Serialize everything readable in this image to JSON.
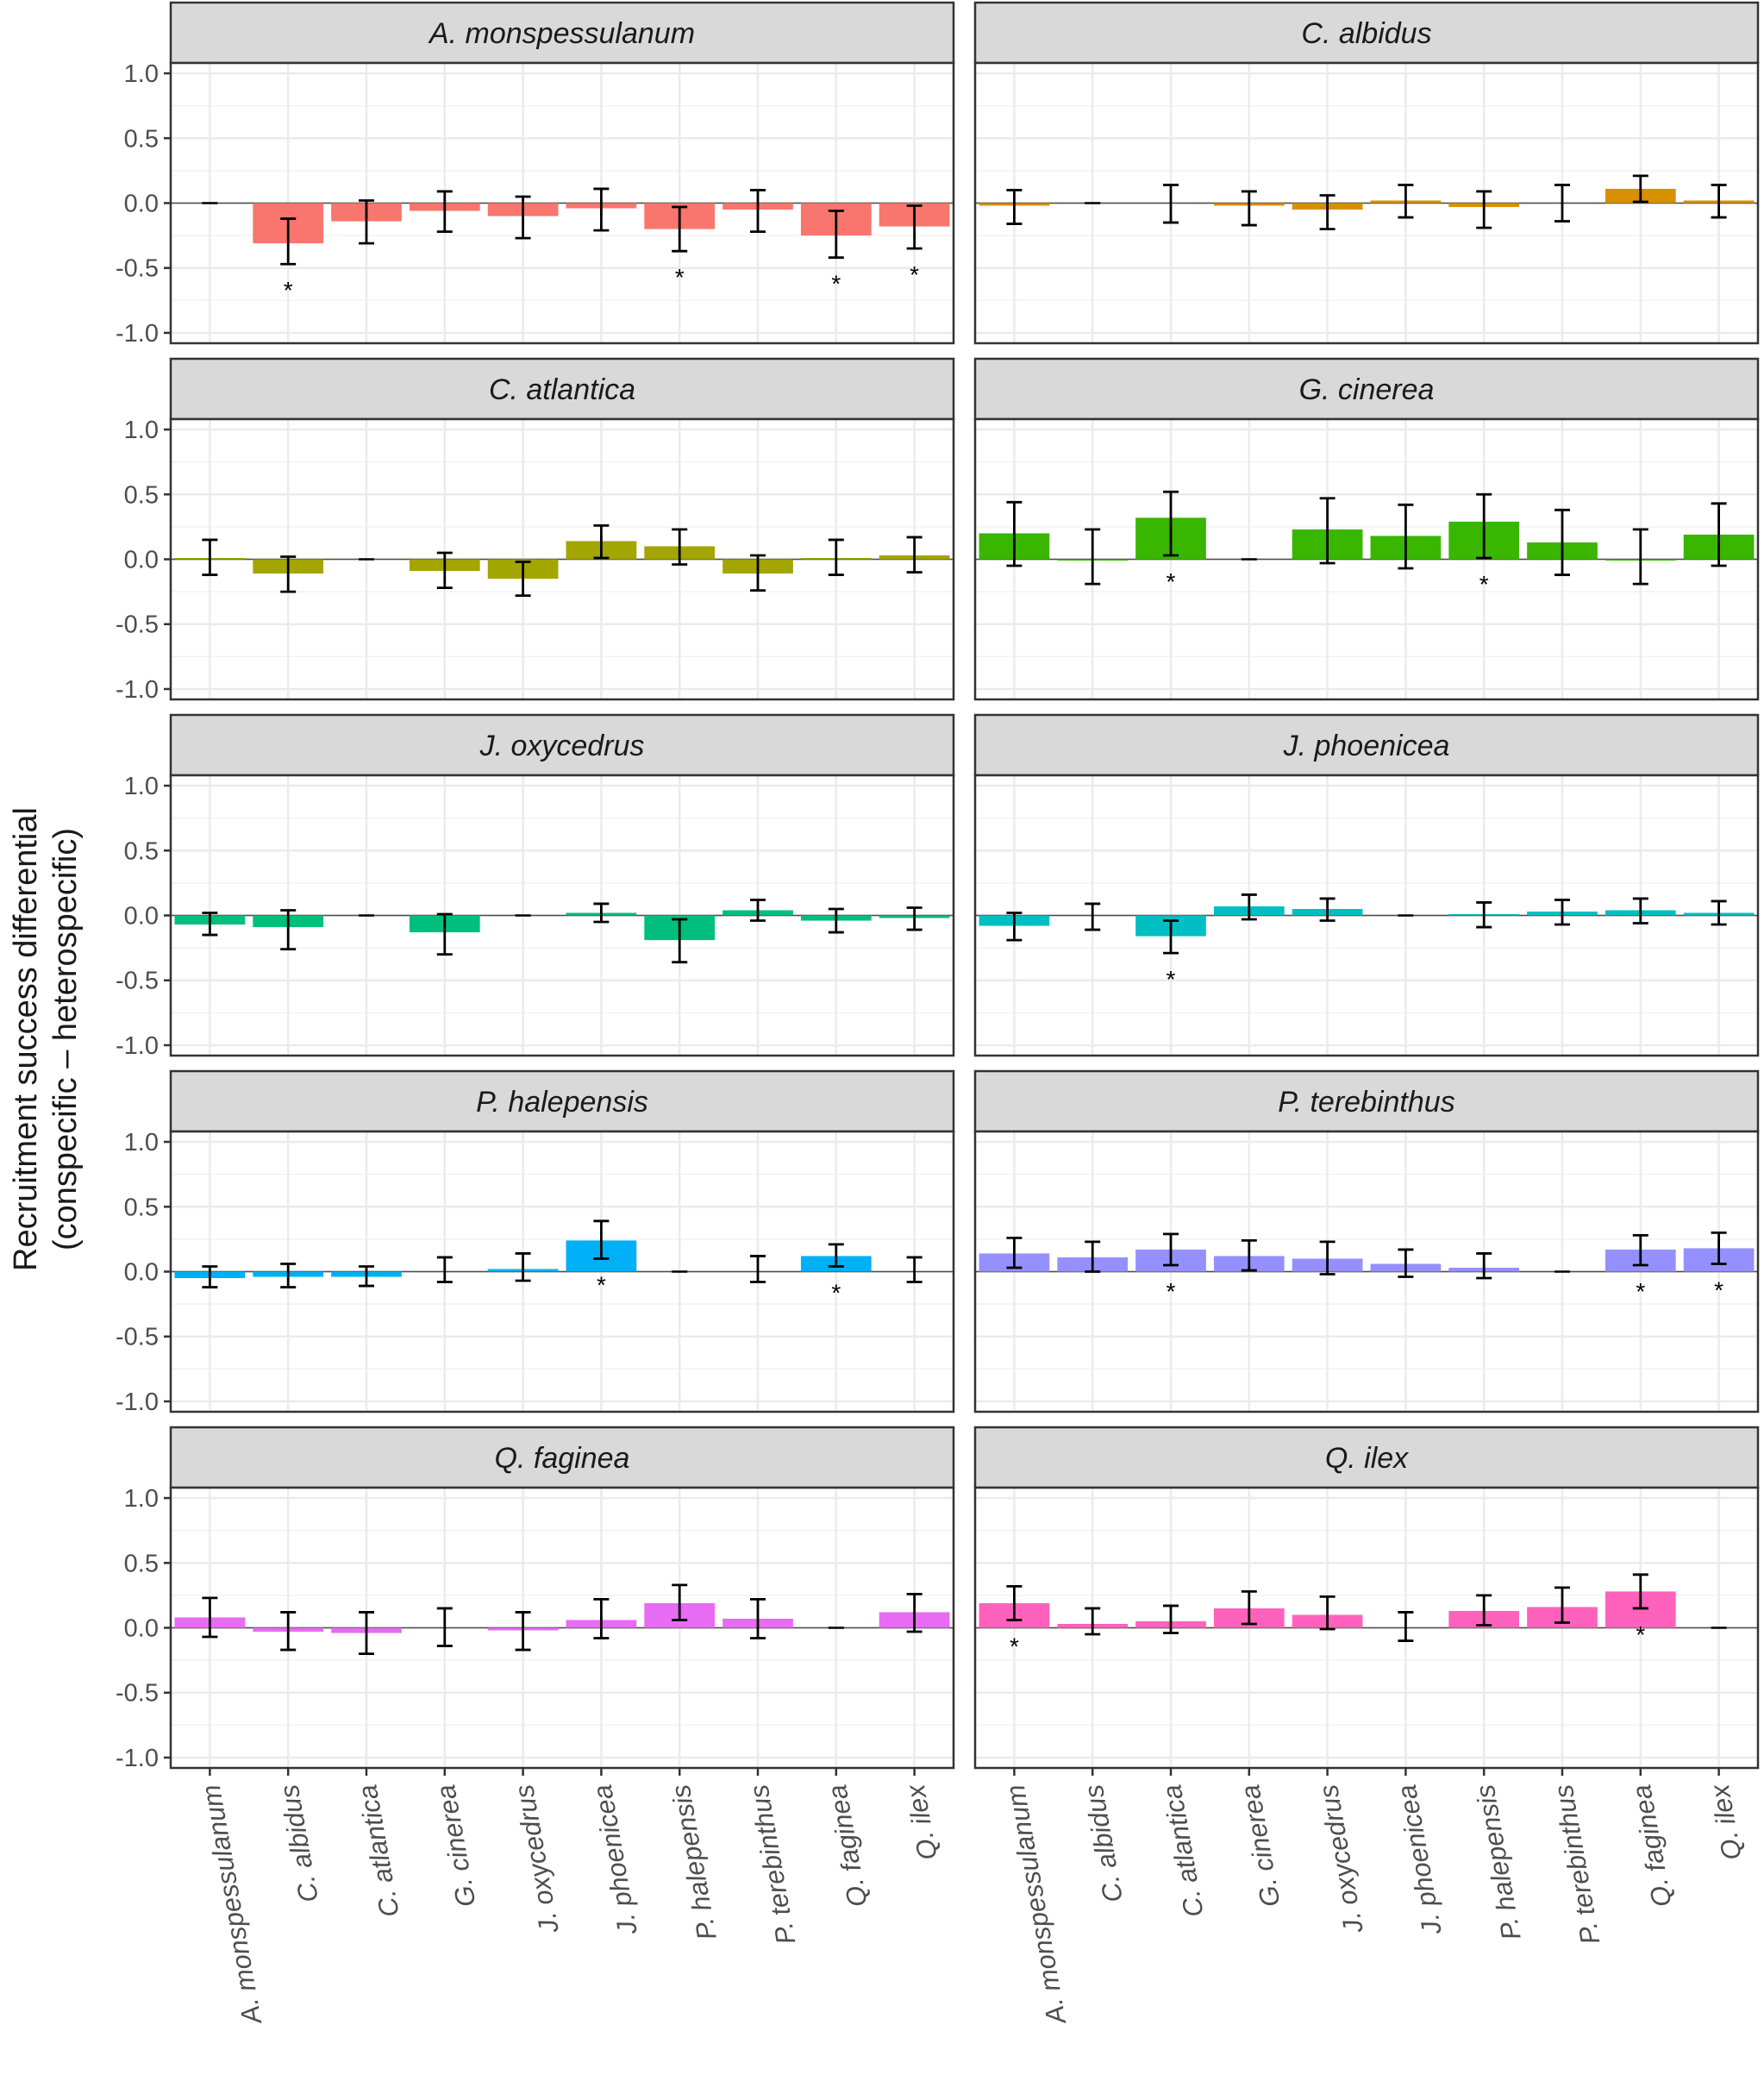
{
  "chart_data": {
    "type": "bar",
    "ylabel_line1": "Recruitment success differential",
    "ylabel_line2": "(conspecific – heterospecific)",
    "xlabel": "",
    "ylim": [
      -1.08,
      1.08
    ],
    "yticks": [
      1.0,
      0.5,
      0.0,
      -0.5,
      -1.0
    ],
    "ytick_labels": [
      "1.0",
      "0.5",
      "0.0",
      "-0.5",
      "-1.0"
    ],
    "grid": true,
    "legend": "none",
    "categories": [
      "A. monspessulanum",
      "C. albidus",
      "C. atlantica",
      "G. cinerea",
      "J. oxycedrus",
      "J. phoenicea",
      "P. halepensis",
      "P. terebinthus",
      "Q. faginea",
      "Q. ilex"
    ],
    "panels": [
      {
        "name": "A. monspessulanum",
        "color": "#F8766D",
        "values": [
          0.0,
          -0.31,
          -0.14,
          -0.06,
          -0.1,
          -0.04,
          -0.2,
          -0.05,
          -0.25,
          -0.18
        ],
        "lower": [
          0.0,
          -0.47,
          -0.31,
          -0.22,
          -0.27,
          -0.21,
          -0.37,
          -0.22,
          -0.42,
          -0.35
        ],
        "upper": [
          0.0,
          -0.12,
          0.02,
          0.09,
          0.05,
          0.11,
          -0.03,
          0.1,
          -0.06,
          -0.02
        ],
        "significant": [
          "C. albidus",
          "P. halepensis",
          "Q. faginea",
          "Q. ilex"
        ]
      },
      {
        "name": "C. albidus",
        "color": "#D89000",
        "values": [
          -0.02,
          0.0,
          0.0,
          -0.02,
          -0.05,
          0.02,
          -0.03,
          0.0,
          0.11,
          0.02
        ],
        "lower": [
          -0.16,
          0.0,
          -0.15,
          -0.17,
          -0.2,
          -0.11,
          -0.19,
          -0.14,
          0.01,
          -0.11
        ],
        "upper": [
          0.1,
          0.0,
          0.14,
          0.09,
          0.06,
          0.14,
          0.09,
          0.14,
          0.21,
          0.14
        ],
        "significant": []
      },
      {
        "name": "C. atlantica",
        "color": "#A3A500",
        "values": [
          0.01,
          -0.11,
          0.0,
          -0.09,
          -0.15,
          0.14,
          0.1,
          -0.11,
          0.01,
          0.03
        ],
        "lower": [
          -0.12,
          -0.25,
          0.0,
          -0.22,
          -0.28,
          0.01,
          -0.04,
          -0.24,
          -0.12,
          -0.1
        ],
        "upper": [
          0.15,
          0.02,
          0.0,
          0.05,
          -0.02,
          0.26,
          0.23,
          0.03,
          0.15,
          0.17
        ],
        "significant": []
      },
      {
        "name": "G. cinerea",
        "color": "#39B600",
        "values": [
          0.2,
          -0.01,
          0.32,
          0.0,
          0.23,
          0.18,
          0.29,
          0.13,
          -0.01,
          0.19
        ],
        "lower": [
          -0.05,
          -0.19,
          0.03,
          0.0,
          -0.03,
          -0.07,
          0.01,
          -0.12,
          -0.19,
          -0.05
        ],
        "upper": [
          0.44,
          0.23,
          0.52,
          0.0,
          0.47,
          0.42,
          0.5,
          0.38,
          0.23,
          0.43
        ],
        "significant": [
          "C. atlantica",
          "P. halepensis"
        ]
      },
      {
        "name": "J. oxycedrus",
        "color": "#00BF7D",
        "values": [
          -0.07,
          -0.09,
          0.0,
          -0.13,
          0.0,
          0.02,
          -0.19,
          0.04,
          -0.04,
          -0.02
        ],
        "lower": [
          -0.15,
          -0.26,
          0.0,
          -0.3,
          0.0,
          -0.05,
          -0.36,
          -0.04,
          -0.13,
          -0.11
        ],
        "upper": [
          0.02,
          0.04,
          0.0,
          0.01,
          0.0,
          0.09,
          -0.03,
          0.12,
          0.05,
          0.06
        ],
        "significant": []
      },
      {
        "name": "J. phoenicea",
        "color": "#00BFC4",
        "values": [
          -0.08,
          0.0,
          -0.16,
          0.07,
          0.05,
          0.0,
          0.01,
          0.03,
          0.04,
          0.02
        ],
        "lower": [
          -0.19,
          -0.11,
          -0.29,
          -0.03,
          -0.04,
          0.0,
          -0.09,
          -0.07,
          -0.06,
          -0.07
        ],
        "upper": [
          0.02,
          0.09,
          -0.04,
          0.16,
          0.13,
          0.0,
          0.1,
          0.12,
          0.13,
          0.11
        ],
        "significant": [
          "C. atlantica"
        ]
      },
      {
        "name": "P. halepensis",
        "color": "#00B0F6",
        "values": [
          -0.05,
          -0.04,
          -0.04,
          0.0,
          0.02,
          0.24,
          0.0,
          0.0,
          0.12,
          0.0
        ],
        "lower": [
          -0.12,
          -0.12,
          -0.11,
          -0.08,
          -0.07,
          0.1,
          0.0,
          -0.08,
          0.04,
          -0.08
        ],
        "upper": [
          0.04,
          0.06,
          0.04,
          0.11,
          0.14,
          0.39,
          0.0,
          0.12,
          0.21,
          0.11
        ],
        "significant": [
          "J. phoenicea",
          "Q. faginea"
        ]
      },
      {
        "name": "P. terebinthus",
        "color": "#9590FF",
        "values": [
          0.14,
          0.11,
          0.17,
          0.12,
          0.1,
          0.06,
          0.03,
          0.0,
          0.17,
          0.18
        ],
        "lower": [
          0.03,
          0.0,
          0.05,
          0.01,
          -0.02,
          -0.04,
          -0.05,
          0.0,
          0.05,
          0.06
        ],
        "upper": [
          0.26,
          0.23,
          0.29,
          0.24,
          0.23,
          0.17,
          0.14,
          0.0,
          0.28,
          0.3
        ],
        "significant": [
          "C. atlantica",
          "Q. faginea",
          "Q. ilex"
        ]
      },
      {
        "name": "Q. faginea",
        "color": "#E76BF3",
        "values": [
          0.08,
          -0.03,
          -0.04,
          0.0,
          -0.02,
          0.06,
          0.19,
          0.07,
          0.0,
          0.12
        ],
        "lower": [
          -0.07,
          -0.17,
          -0.2,
          -0.14,
          -0.17,
          -0.08,
          0.06,
          -0.08,
          0.0,
          -0.03
        ],
        "upper": [
          0.23,
          0.12,
          0.12,
          0.15,
          0.12,
          0.22,
          0.33,
          0.22,
          0.0,
          0.26
        ],
        "significant": []
      },
      {
        "name": "Q. ilex",
        "color": "#FF62BC",
        "values": [
          0.19,
          0.03,
          0.05,
          0.15,
          0.1,
          0.0,
          0.13,
          0.16,
          0.28,
          0.0
        ],
        "lower": [
          0.06,
          -0.05,
          -0.04,
          0.03,
          -0.01,
          -0.1,
          0.02,
          0.04,
          0.15,
          0.0
        ],
        "upper": [
          0.32,
          0.15,
          0.17,
          0.28,
          0.24,
          0.12,
          0.25,
          0.31,
          0.41,
          0.0
        ],
        "significant": [
          "A. monspessulanum",
          "Q. faginea"
        ]
      }
    ],
    "significance_marker": "*"
  }
}
